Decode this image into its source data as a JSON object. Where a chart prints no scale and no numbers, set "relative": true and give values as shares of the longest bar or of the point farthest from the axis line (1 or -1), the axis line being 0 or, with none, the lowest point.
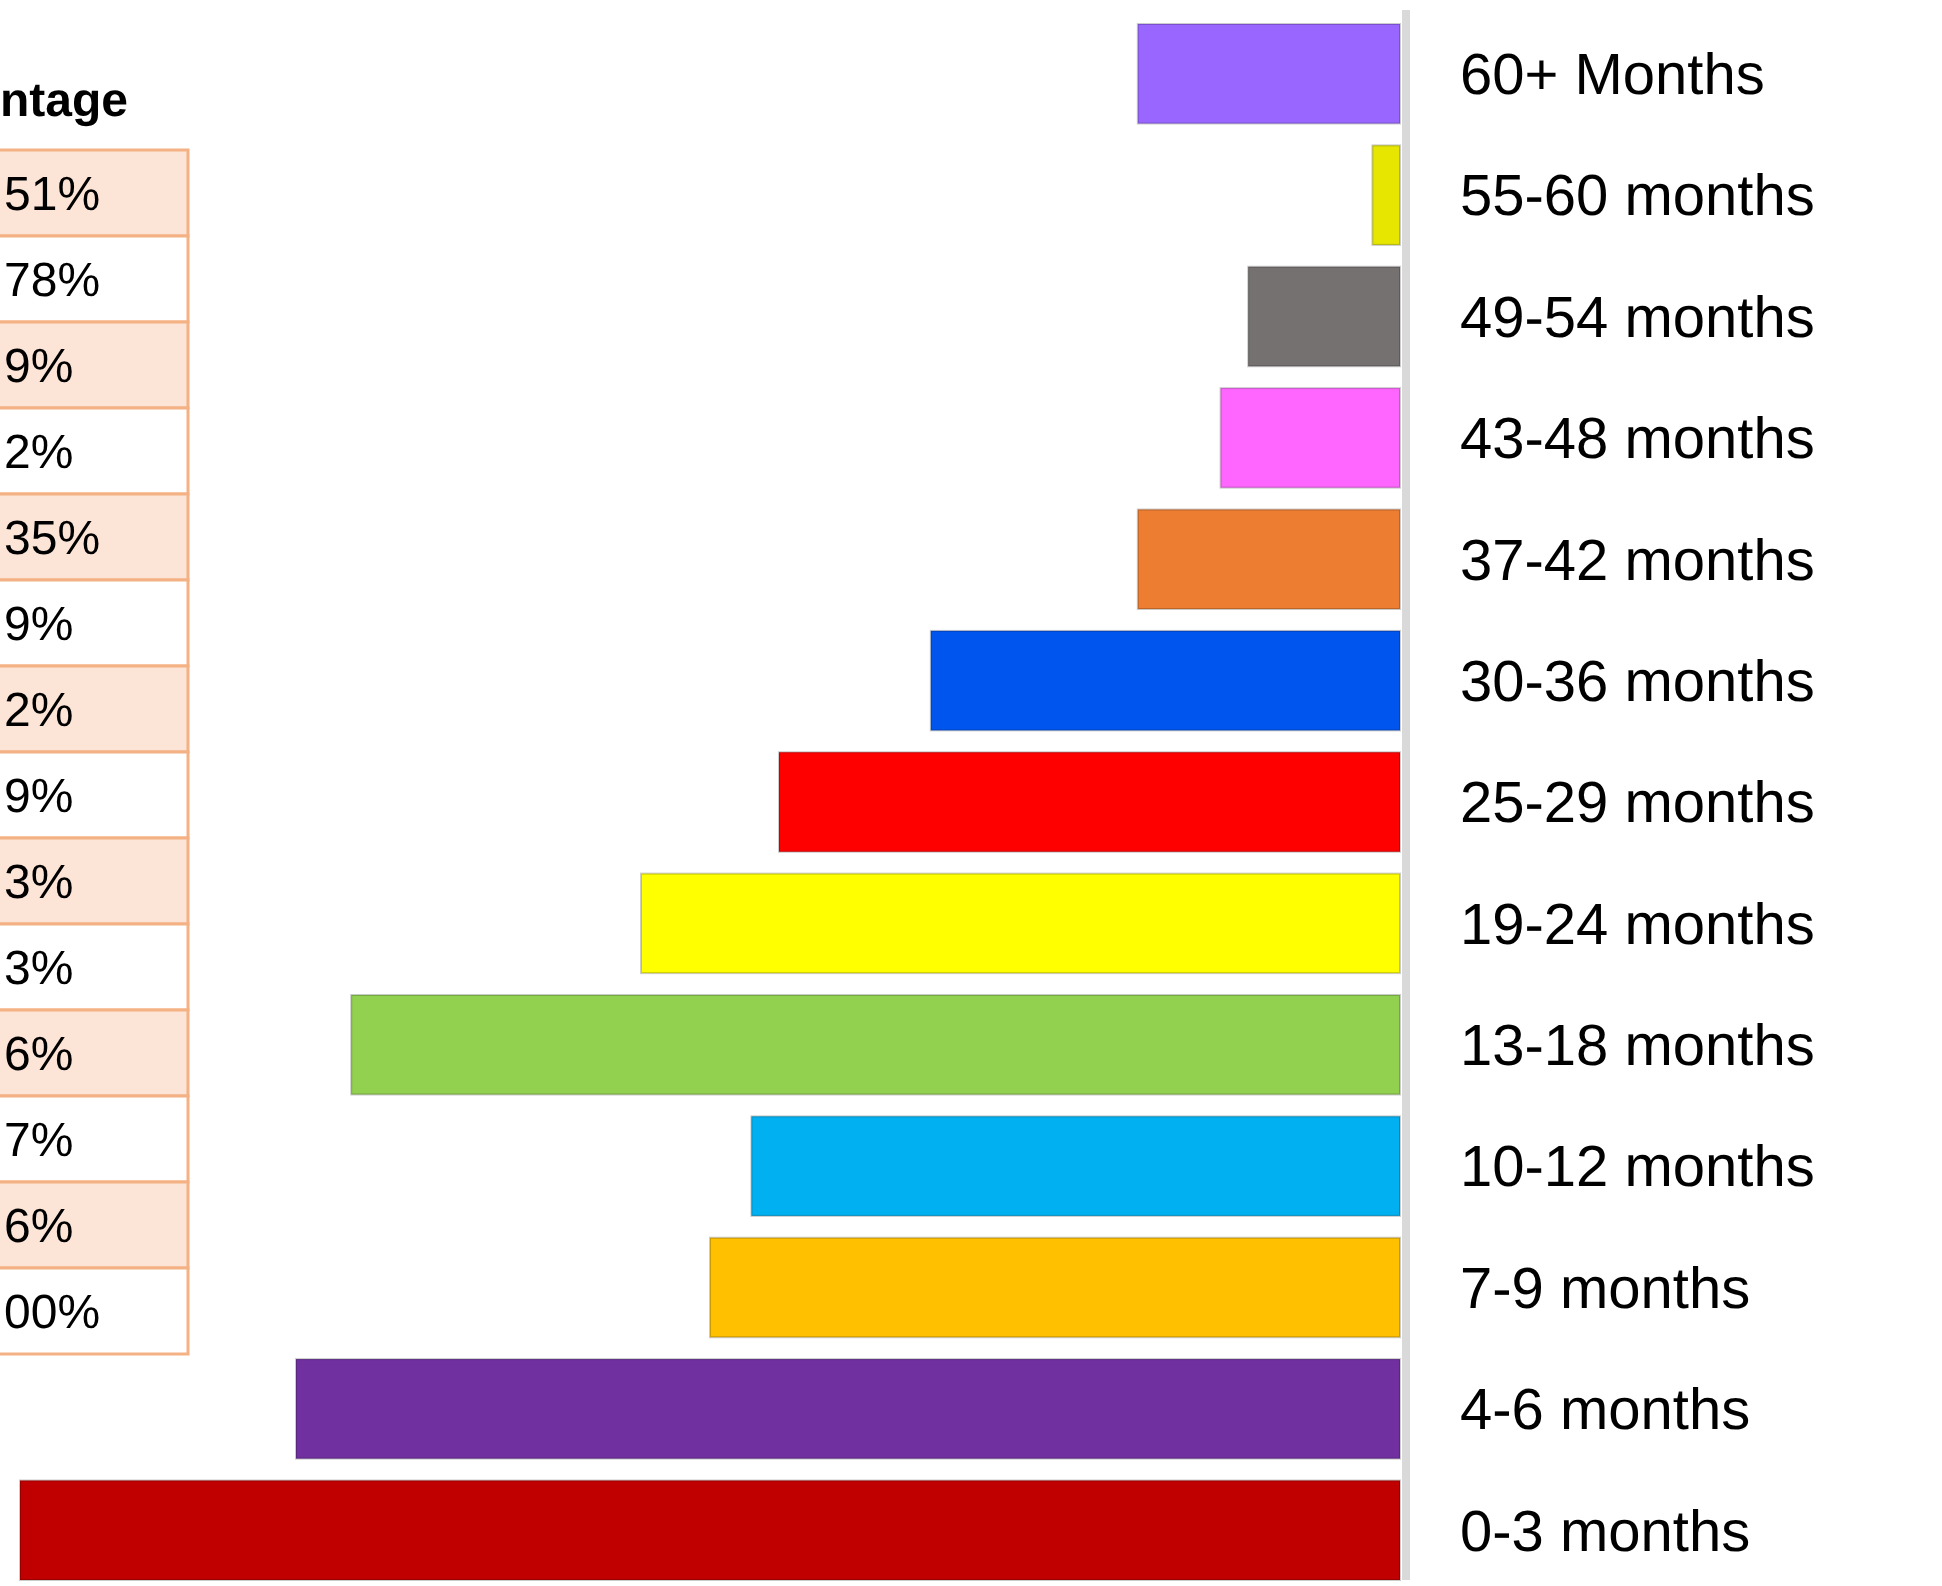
{
  "chart_data": {
    "type": "bar",
    "orientation": "horizontal",
    "relative": true,
    "categories": [
      "60+ Months",
      "55-60 months",
      "49-54 months",
      "43-48 months",
      "37-42 months",
      "30-36 months",
      "25-29 months",
      "19-24 months",
      "13-18 months",
      "10-12 months",
      "7-9 months",
      "4-6 months",
      "0-3 months"
    ],
    "values": [
      0.19,
      0.02,
      0.11,
      0.13,
      0.19,
      0.34,
      0.45,
      0.55,
      0.76,
      0.47,
      0.5,
      0.8,
      1
    ],
    "colors": [
      "#9966ff",
      "#e6e600",
      "#767171",
      "#ff66ff",
      "#ed7d31",
      "#0055ee",
      "#ff0000",
      "#ffff00",
      "#92d050",
      "#00b0f0",
      "#ffc000",
      "#7030a0",
      "#c00000"
    ],
    "annotations": [
      "ntage",
      "51%",
      "78%",
      "9%",
      "2%",
      "35%",
      "9%",
      "2%",
      "9%",
      "3%",
      "3%",
      "6%",
      "7%",
      "6%",
      "00%"
    ]
  }
}
